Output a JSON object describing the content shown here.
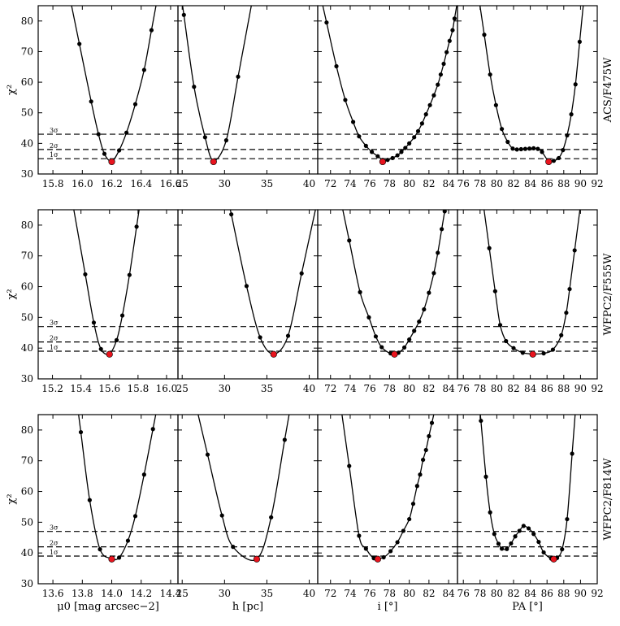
{
  "figure": {
    "ylabel": "χ²",
    "sigma_labels": [
      "1σ",
      "2σ",
      "3σ"
    ]
  },
  "chart_data": {
    "type": "scatter",
    "ylim": [
      30,
      85
    ],
    "yticks": [
      30,
      40,
      50,
      60,
      70,
      80
    ],
    "grid": false,
    "row_labels": [
      "ACS/F475W",
      "WFPC2/F555W",
      "WFPC2/F814W"
    ],
    "col_xlabels": [
      "μ0 [mag arcsec−2]",
      "h [pc]",
      "i [°]",
      "PA [°]"
    ],
    "colors": {
      "points": "#000000",
      "best_fit": "#e8141e",
      "curve": "#000000",
      "sigma_lines": "#000000"
    },
    "rows": [
      {
        "label": "ACS/F475W",
        "sigma_levels": [
          35.0,
          38.0,
          43.0
        ],
        "panels": [
          {
            "parameter": "μ0",
            "xlim": [
              15.7,
              16.65
            ],
            "xticks": [
              "15.8",
              "16.0",
              "16.2",
              "16.4",
              "16.6"
            ],
            "points": [
              [
                15.98,
                72.5
              ],
              [
                16.06,
                53.7
              ],
              [
                16.11,
                43.0
              ],
              [
                16.15,
                36.6
              ],
              [
                16.2,
                34.2
              ],
              [
                16.25,
                37.7
              ],
              [
                16.3,
                43.5
              ],
              [
                16.36,
                52.8
              ],
              [
                16.42,
                64.0
              ],
              [
                16.47,
                77.0
              ]
            ],
            "best": [
              16.2,
              34.0
            ]
          },
          {
            "parameter": "h",
            "xlim": [
              24.5,
              41
            ],
            "xticks": [
              "25",
              "30",
              "35",
              "40"
            ],
            "points": [
              [
                25.2,
                82.0
              ],
              [
                26.4,
                58.5
              ],
              [
                27.7,
                42.0
              ],
              [
                28.7,
                34.4
              ],
              [
                30.2,
                41.0
              ],
              [
                31.6,
                61.8
              ]
            ],
            "best": [
              28.7,
              34.0
            ]
          },
          {
            "parameter": "i",
            "xlim": [
              70.7,
              84.9
            ],
            "xticks": [
              "72",
              "74",
              "76",
              "78",
              "80",
              "82",
              "84"
            ],
            "points": [
              [
                71.6,
                79.5
              ],
              [
                72.6,
                65.2
              ],
              [
                73.5,
                54.2
              ],
              [
                74.3,
                47.0
              ],
              [
                74.9,
                42.3
              ],
              [
                75.6,
                39.2
              ],
              [
                76.2,
                37.2
              ],
              [
                76.8,
                35.8
              ],
              [
                77.3,
                34.6
              ],
              [
                77.8,
                34.6
              ],
              [
                78.3,
                35.2
              ],
              [
                78.8,
                36.1
              ],
              [
                79.2,
                37.2
              ],
              [
                79.6,
                38.5
              ],
              [
                80.0,
                40.0
              ],
              [
                80.5,
                42.0
              ],
              [
                80.9,
                44.0
              ],
              [
                81.3,
                46.5
              ],
              [
                81.7,
                49.5
              ],
              [
                82.1,
                52.5
              ],
              [
                82.5,
                55.7
              ],
              [
                82.9,
                59.2
              ],
              [
                83.2,
                62.5
              ],
              [
                83.5,
                66.0
              ],
              [
                83.8,
                69.8
              ],
              [
                84.1,
                73.5
              ],
              [
                84.4,
                77.0
              ],
              [
                84.6,
                80.8
              ]
            ],
            "best": [
              77.3,
              34.0
            ]
          },
          {
            "parameter": "PA",
            "xlim": [
              75.3,
              92
            ],
            "xticks": [
              "76",
              "78",
              "80",
              "82",
              "84",
              "86",
              "88",
              "90",
              "92"
            ],
            "points": [
              [
                78.5,
                75.5
              ],
              [
                79.2,
                62.5
              ],
              [
                79.9,
                52.5
              ],
              [
                80.6,
                44.7
              ],
              [
                81.3,
                40.5
              ],
              [
                81.9,
                38.3
              ],
              [
                82.4,
                38.0
              ],
              [
                82.9,
                38.1
              ],
              [
                83.4,
                38.2
              ],
              [
                83.9,
                38.3
              ],
              [
                84.4,
                38.4
              ],
              [
                84.9,
                38.2
              ],
              [
                85.4,
                37.2
              ],
              [
                86.2,
                34.1
              ],
              [
                86.8,
                34.3
              ],
              [
                87.4,
                35.2
              ],
              [
                87.9,
                37.8
              ],
              [
                88.4,
                42.6
              ],
              [
                88.9,
                49.5
              ],
              [
                89.4,
                59.3
              ],
              [
                89.9,
                73.2
              ]
            ],
            "best": [
              86.2,
              34.0
            ]
          }
        ]
      },
      {
        "label": "WFPC2/F555W",
        "sigma_levels": [
          39.0,
          42.0,
          47.0
        ],
        "panels": [
          {
            "parameter": "μ0",
            "xlim": [
              15.1,
              16.08
            ],
            "xticks": [
              "15.2",
              "15.4",
              "15.6",
              "15.8",
              "16.0"
            ],
            "points": [
              [
                15.43,
                64.0
              ],
              [
                15.49,
                48.3
              ],
              [
                15.54,
                39.7
              ],
              [
                15.6,
                38.2
              ],
              [
                15.65,
                42.6
              ],
              [
                15.69,
                50.6
              ],
              [
                15.74,
                63.8
              ],
              [
                15.79,
                79.5
              ]
            ],
            "best": [
              15.6,
              38.0
            ]
          },
          {
            "parameter": "h",
            "xlim": [
              24.5,
              41
            ],
            "xticks": [
              "25",
              "30",
              "35",
              "40"
            ],
            "points": [
              [
                30.8,
                83.5
              ],
              [
                32.6,
                60.2
              ],
              [
                34.2,
                43.5
              ],
              [
                35.8,
                38.1
              ],
              [
                37.5,
                44.0
              ],
              [
                39.1,
                64.3
              ]
            ],
            "best": [
              35.8,
              38.0
            ]
          },
          {
            "parameter": "i",
            "xlim": [
              70.7,
              84.9
            ],
            "xticks": [
              "72",
              "74",
              "76",
              "78",
              "80",
              "82",
              "84"
            ],
            "points": [
              [
                73.9,
                75.0
              ],
              [
                75.0,
                58.2
              ],
              [
                75.9,
                50.0
              ],
              [
                76.6,
                43.8
              ],
              [
                77.2,
                40.3
              ],
              [
                78.1,
                38.3
              ],
              [
                78.9,
                38.5
              ],
              [
                79.5,
                40.2
              ],
              [
                80.0,
                42.8
              ],
              [
                80.5,
                45.6
              ],
              [
                81.0,
                48.6
              ],
              [
                81.5,
                52.6
              ],
              [
                82.0,
                58.0
              ],
              [
                82.5,
                64.4
              ],
              [
                82.9,
                71.0
              ],
              [
                83.3,
                78.7
              ],
              [
                83.6,
                84.5
              ]
            ],
            "best": [
              78.5,
              38.0
            ]
          },
          {
            "parameter": "PA",
            "xlim": [
              75.3,
              92
            ],
            "xticks": [
              "76",
              "78",
              "80",
              "82",
              "84",
              "86",
              "88",
              "90",
              "92"
            ],
            "points": [
              [
                79.1,
                72.5
              ],
              [
                79.8,
                58.5
              ],
              [
                80.4,
                47.5
              ],
              [
                81.1,
                42.3
              ],
              [
                82.0,
                40.0
              ],
              [
                83.1,
                38.5
              ],
              [
                84.3,
                38.1
              ],
              [
                85.6,
                38.3
              ],
              [
                86.7,
                39.5
              ],
              [
                87.7,
                44.2
              ],
              [
                88.3,
                51.5
              ],
              [
                88.7,
                59.2
              ],
              [
                89.3,
                71.8
              ]
            ],
            "best": [
              84.3,
              38.0
            ]
          }
        ]
      },
      {
        "label": "WFPC2/F814W",
        "sigma_levels": [
          39.0,
          42.0,
          47.0
        ],
        "panels": [
          {
            "parameter": "μ0",
            "xlim": [
              13.5,
              14.45
            ],
            "xticks": [
              "13.6",
              "13.8",
              "14.0",
              "14.2",
              "14.4"
            ],
            "points": [
              [
                13.79,
                79.3
              ],
              [
                13.85,
                57.2
              ],
              [
                13.92,
                41.2
              ],
              [
                14.0,
                38.2
              ],
              [
                14.05,
                38.5
              ],
              [
                14.11,
                44.0
              ],
              [
                14.16,
                52.0
              ],
              [
                14.22,
                65.5
              ],
              [
                14.28,
                80.3
              ]
            ],
            "best": [
              14.0,
              38.0
            ]
          },
          {
            "parameter": "h",
            "xlim": [
              24.5,
              41
            ],
            "xticks": [
              "25",
              "30",
              "35",
              "40"
            ],
            "points": [
              [
                28.0,
                72.0
              ],
              [
                29.7,
                52.2
              ],
              [
                31.0,
                42.0
              ],
              [
                33.8,
                38.0
              ],
              [
                35.5,
                51.6
              ],
              [
                37.1,
                76.8
              ]
            ],
            "best": [
              33.8,
              38.0
            ]
          },
          {
            "parameter": "i",
            "xlim": [
              70.7,
              84.9
            ],
            "xticks": [
              "72",
              "74",
              "76",
              "78",
              "80",
              "82",
              "84"
            ],
            "points": [
              [
                73.9,
                68.3
              ],
              [
                74.9,
                45.6
              ],
              [
                75.6,
                41.4
              ],
              [
                76.4,
                38.3
              ],
              [
                77.4,
                38.6
              ],
              [
                78.1,
                40.6
              ],
              [
                78.8,
                43.5
              ],
              [
                79.4,
                47.2
              ],
              [
                80.0,
                51.0
              ],
              [
                80.4,
                56.0
              ],
              [
                80.8,
                61.8
              ],
              [
                81.1,
                65.5
              ],
              [
                81.4,
                70.3
              ],
              [
                81.7,
                73.5
              ],
              [
                82.0,
                78.0
              ],
              [
                82.3,
                82.3
              ]
            ],
            "best": [
              76.8,
              38.0
            ]
          },
          {
            "parameter": "PA",
            "xlim": [
              75.3,
              92
            ],
            "xticks": [
              "76",
              "78",
              "80",
              "82",
              "84",
              "86",
              "88",
              "90",
              "92"
            ],
            "points": [
              [
                78.1,
                83.0
              ],
              [
                78.7,
                64.8
              ],
              [
                79.2,
                53.2
              ],
              [
                79.7,
                46.2
              ],
              [
                80.2,
                43.0
              ],
              [
                80.6,
                41.4
              ],
              [
                81.2,
                41.3
              ],
              [
                81.7,
                43.1
              ],
              [
                82.2,
                45.4
              ],
              [
                82.7,
                47.2
              ],
              [
                83.2,
                48.8
              ],
              [
                83.8,
                48.0
              ],
              [
                84.4,
                46.2
              ],
              [
                85.0,
                43.6
              ],
              [
                85.6,
                40.2
              ],
              [
                86.5,
                38.2
              ],
              [
                87.2,
                38.4
              ],
              [
                87.8,
                41.2
              ],
              [
                88.4,
                51.0
              ],
              [
                89.0,
                72.3
              ]
            ],
            "best": [
              86.8,
              38.0
            ]
          }
        ]
      }
    ]
  }
}
